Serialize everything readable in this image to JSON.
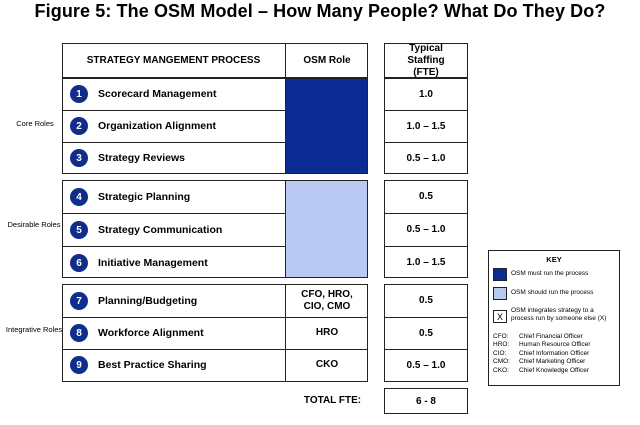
{
  "title": "Figure 5: The OSM Model – How Many People? What Do They Do?",
  "headers": {
    "process": "STRATEGY MANGEMENT PROCESS",
    "osm_role": "OSM Role",
    "staffing": "Typical Staffing (FTE)"
  },
  "groups": {
    "core": "Core Roles",
    "desirable": "Desirable Roles",
    "integrative": "Integrative Roles"
  },
  "processes": [
    {
      "num": "1",
      "name": "Scorecard Management",
      "osm": "",
      "staffing": "1.0"
    },
    {
      "num": "2",
      "name": "Organization Alignment",
      "osm": "",
      "staffing": "1.0 – 1.5"
    },
    {
      "num": "3",
      "name": "Strategy Reviews",
      "osm": "",
      "staffing": "0.5 – 1.0"
    },
    {
      "num": "4",
      "name": "Strategic Planning",
      "osm": "",
      "staffing": "0.5"
    },
    {
      "num": "5",
      "name": "Strategy Communication",
      "osm": "",
      "staffing": "0.5 – 1.0"
    },
    {
      "num": "6",
      "name": "Initiative Management",
      "osm": "",
      "staffing": "1.0 – 1.5"
    },
    {
      "num": "7",
      "name": "Planning/Budgeting",
      "osm": "CFO, HRO, CIO, CMO",
      "staffing": "0.5"
    },
    {
      "num": "8",
      "name": "Workforce Alignment",
      "osm": "HRO",
      "staffing": "0.5"
    },
    {
      "num": "9",
      "name": "Best Practice Sharing",
      "osm": "CKO",
      "staffing": "0.5 – 1.0"
    }
  ],
  "total": {
    "label": "TOTAL FTE:",
    "value": "6 - 8"
  },
  "key": {
    "title": "KEY",
    "must_run": "OSM must run the process",
    "should_run": "OSM should run the process",
    "integrates_symbol": "X",
    "integrates": "OSM integrates strategy to a process run by someone else (X)",
    "abbreviations": [
      {
        "abbr": "CFO:",
        "full": "Chief Financial Officer"
      },
      {
        "abbr": "HRO:",
        "full": "Human Resource Officer"
      },
      {
        "abbr": "CIO:",
        "full": "Chief Information Officer"
      },
      {
        "abbr": "CMO:",
        "full": "Chief Marketing Officer"
      },
      {
        "abbr": "CKO:",
        "full": "Chief Knowledge Officer"
      }
    ]
  },
  "colors": {
    "must_run": "#0b2a92",
    "should_run": "#b9c9f2",
    "badge": "#102d8c"
  }
}
